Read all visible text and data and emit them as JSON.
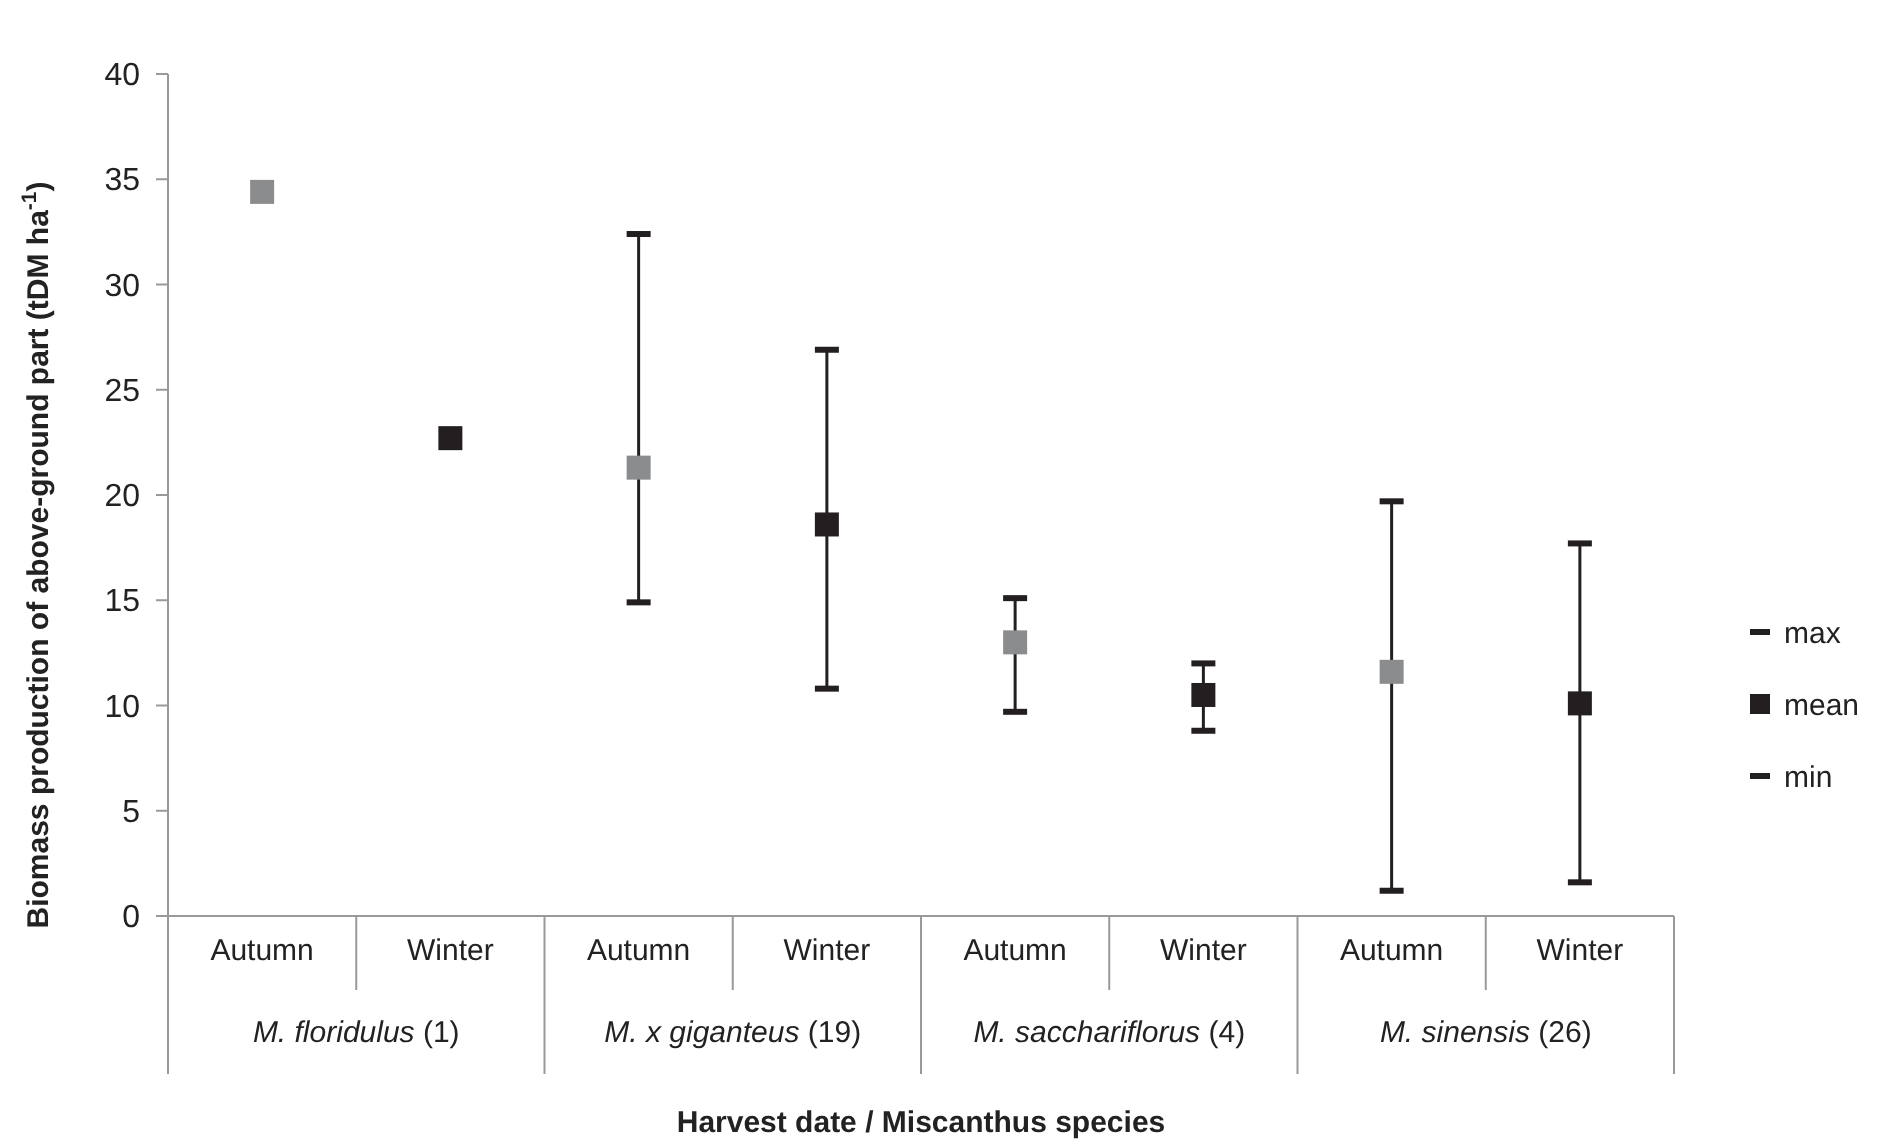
{
  "chart_data": {
    "type": "scatter",
    "xlabel": "Harvest date / Miscanthus species",
    "ylabel": "Biomass production of above-ground part (tDM ha$^{-1}$)",
    "categories": [
      "Autumn",
      "Winter",
      "Autumn",
      "Winter",
      "Autumn",
      "Winter",
      "Autumn",
      "Winter"
    ],
    "annotations": [
      "M. floridulus (1)",
      "M. x giganteus (19)",
      "M. sacchariflorus (4)",
      "M. sinensis (26)",
      {
        "text": "max"
      },
      {
        "text": "min"
      }
    ],
    "series": [
      {
        "name": "mean",
        "color": "#231f20",
        "marker": "square",
        "colors": [
          "#8b8c8e",
          "#231f20",
          "#8b8c8e",
          "#231f20",
          "#8b8c8e",
          "#231f20",
          "#8b8c8e",
          "#231f20"
        ],
        "values": [
          34.4,
          22.7,
          21.3,
          18.6,
          13.0,
          10.5,
          11.6,
          10.1
        ],
        "errors": [
          null,
          null,
          [
            14.9,
            32.4
          ],
          [
            10.8,
            26.9
          ],
          [
            9.7,
            15.1
          ],
          [
            8.8,
            12.0
          ],
          [
            1.2,
            19.7
          ],
          [
            1.6,
            17.7
          ]
        ]
      }
    ],
    "ylim": [
      0,
      40
    ],
    "yticks": [
      0,
      5,
      10,
      15,
      20,
      25,
      30,
      35,
      40
    ],
    "grid": false,
    "legend": "right"
  }
}
